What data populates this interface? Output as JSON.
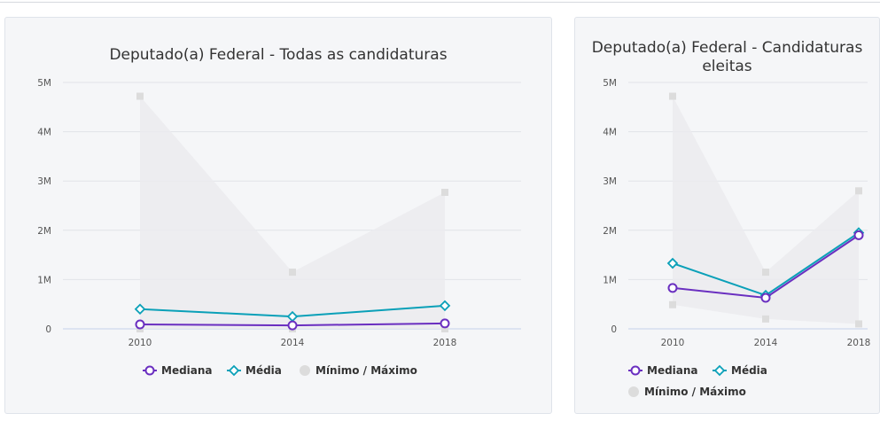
{
  "colors": {
    "mediana": "#6a2fc0",
    "media": "#0aa0b8",
    "range_fill": "#ebebee",
    "range_marker": "#dcdcdc"
  },
  "chart_data": [
    {
      "type": "line",
      "title": "Deputado(a) Federal - Todas as candidaturas",
      "categories": [
        "2010",
        "2014",
        "2018"
      ],
      "yticks": [
        "0",
        "1M",
        "2M",
        "3M",
        "4M",
        "5M"
      ],
      "ylim": [
        0,
        5000000
      ],
      "grid": true,
      "legend_placement": "bottom",
      "series": [
        {
          "name": "Mediana",
          "marker": "circle",
          "values": [
            90000,
            70000,
            110000
          ]
        },
        {
          "name": "Média",
          "marker": "diamond",
          "values": [
            400000,
            250000,
            470000
          ]
        }
      ],
      "range": {
        "name": "Mínimo / Máximo",
        "min": [
          0,
          0,
          0
        ],
        "max": [
          4720000,
          1150000,
          2770000
        ]
      }
    },
    {
      "type": "line",
      "title": "Deputado(a) Federal - Candidaturas eleitas",
      "categories": [
        "2010",
        "2014",
        "2018"
      ],
      "yticks": [
        "0",
        "1M",
        "2M",
        "3M",
        "4M",
        "5M"
      ],
      "ylim": [
        0,
        5000000
      ],
      "grid": true,
      "legend_placement": "bottom",
      "series": [
        {
          "name": "Mediana",
          "marker": "circle",
          "values": [
            830000,
            630000,
            1900000
          ]
        },
        {
          "name": "Média",
          "marker": "diamond",
          "values": [
            1330000,
            680000,
            1950000
          ]
        }
      ],
      "range": {
        "name": "Mínimo / Máximo",
        "min": [
          490000,
          200000,
          100000
        ],
        "max": [
          4720000,
          1150000,
          2800000
        ]
      }
    }
  ]
}
